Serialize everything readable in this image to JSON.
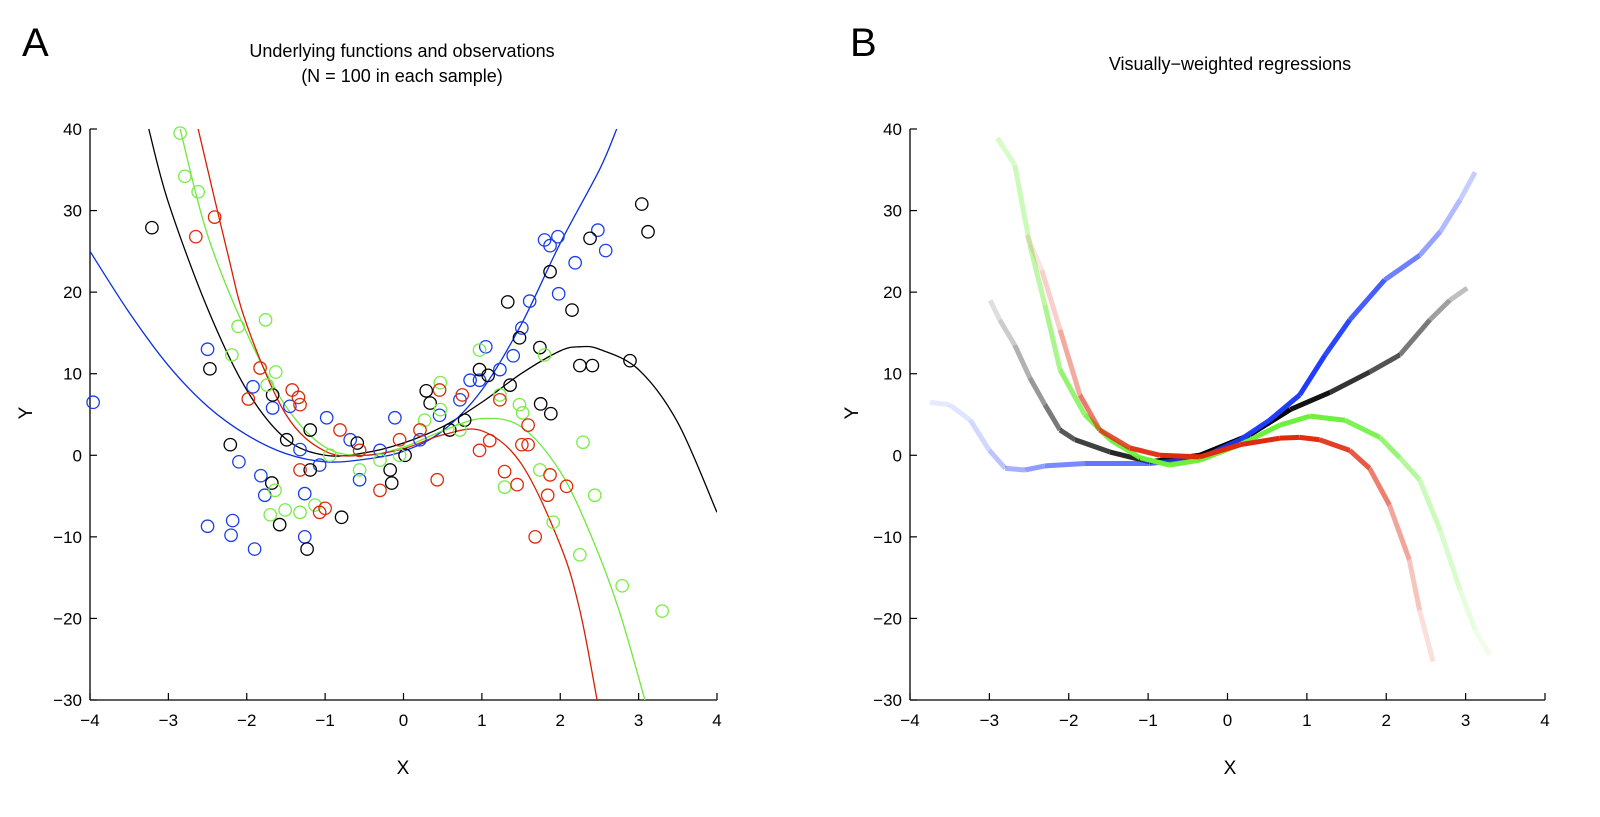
{
  "chart_data": [
    {
      "type": "scatter",
      "panel_label": "A",
      "title": [
        "Underlying functions and observations",
        "(N = 100 in each sample)"
      ],
      "xlabel": "X",
      "ylabel": "Y",
      "xlim": [
        -4,
        4
      ],
      "ylim": [
        -30,
        40
      ],
      "xticks": [
        "−4",
        "−3",
        "−2",
        "−1",
        "0",
        "1",
        "2",
        "3",
        "4"
      ],
      "yticks": [
        "−30",
        "−20",
        "−10",
        "0",
        "10",
        "20",
        "30",
        "40"
      ],
      "grid": false,
      "curves": [
        {
          "color": "#000000",
          "x": [
            -3.25,
            -3,
            -2.5,
            -2,
            -1.5,
            -1,
            -0.5,
            0,
            0.5,
            1,
            1.5,
            2,
            2.25,
            2.5,
            3,
            3.5,
            4
          ],
          "y": [
            40,
            31,
            18,
            8,
            2,
            0,
            0.3,
            1.5,
            3.5,
            6.5,
            10,
            12.8,
            13.3,
            13,
            10.5,
            4,
            -7
          ]
        },
        {
          "color": "#0a2fe0",
          "x": [
            -4,
            -3.5,
            -3,
            -2.5,
            -2,
            -1.5,
            -1,
            -0.5,
            0,
            0.5,
            1,
            1.5,
            2,
            2.5,
            2.72
          ],
          "y": [
            25,
            17.5,
            11,
            6,
            2.5,
            0.2,
            -0.8,
            -0.5,
            0.5,
            3,
            8,
            16,
            26,
            35,
            40
          ]
        },
        {
          "color": "#6ee83c",
          "x": [
            -2.85,
            -2.5,
            -2,
            -1.5,
            -1,
            -0.5,
            0,
            0.5,
            1,
            1.5,
            2,
            2.4,
            2.75,
            3.08
          ],
          "y": [
            40,
            27,
            15,
            6,
            1,
            0,
            1,
            3,
            4.5,
            3.5,
            -2,
            -10,
            -19,
            -30
          ]
        },
        {
          "color": "#d81e00",
          "x": [
            -2.62,
            -2.25,
            -2,
            -1.5,
            -1,
            -0.5,
            0,
            0.5,
            1,
            1.5,
            2,
            2.25,
            2.47
          ],
          "y": [
            40,
            25,
            16,
            5,
            0.5,
            0,
            0.8,
            2.5,
            3,
            -1,
            -11,
            -19,
            -30
          ]
        }
      ],
      "series": [
        {
          "color": "#1a3fe8",
          "x": [
            -3.96,
            -2.5,
            -2.5,
            -2.18,
            -2.2,
            -1.9,
            -1.92,
            -0.98,
            -1.82,
            -1.77,
            -2.1,
            -1.26,
            -1.26,
            -1.67,
            -1.45,
            1.8,
            1.87,
            1.97,
            2.19,
            2.48,
            2.58,
            1.98,
            1.61,
            1.51,
            1.4,
            1.05,
            0.85,
            -0.11,
            -0.68,
            -0.3,
            0.21,
            0.46,
            0.72,
            0.97,
            1.23,
            -0.56,
            -1.32,
            -1.07
          ],
          "y": [
            6.5,
            13,
            -8.7,
            -8,
            -9.8,
            -11.5,
            8.4,
            4.6,
            -2.5,
            -4.9,
            -0.8,
            -4.7,
            -10,
            5.8,
            6,
            26.4,
            25.7,
            26.8,
            23.6,
            27.6,
            25.1,
            19.8,
            18.9,
            15.6,
            12.2,
            13.3,
            9.2,
            4.6,
            1.9,
            0.6,
            1.9,
            4.9,
            6.8,
            9.2,
            10.5,
            -3,
            0.7,
            -1.2
          ]
        },
        {
          "color": "#000000",
          "x": [
            -3.21,
            -2.47,
            -2.21,
            -1.68,
            -1.58,
            -1.23,
            -0.79,
            -1.67,
            -1.49,
            -1.19,
            -1.19,
            -0.15,
            -0.17,
            -0.59,
            0.29,
            0.34,
            0.78,
            0.97,
            1.08,
            1.33,
            1.48,
            1.74,
            1.87,
            1.88,
            1.75,
            2.15,
            2.38,
            3.04,
            3.12,
            2.25,
            2.41,
            2.89,
            1.36,
            0.59,
            0.02
          ],
          "y": [
            27.9,
            10.6,
            1.3,
            -3.4,
            -8.5,
            -11.5,
            -7.6,
            7.4,
            1.9,
            3.1,
            -1.8,
            -3.4,
            -1.8,
            1.5,
            7.9,
            6.4,
            4.3,
            10.5,
            9.8,
            18.8,
            14.4,
            13.2,
            22.5,
            5.1,
            6.3,
            17.8,
            26.6,
            30.8,
            27.4,
            11,
            11,
            11.6,
            8.6,
            3.1,
            0
          ]
        },
        {
          "color": "#78ec46",
          "x": [
            -2.85,
            -2.79,
            -2.62,
            -2.11,
            -1.76,
            -2.19,
            -1.63,
            -1.74,
            -1.51,
            -1.7,
            -1.32,
            -1.13,
            -1.64,
            -0.56,
            -0.3,
            -0.05,
            0.27,
            0.47,
            0.97,
            1.8,
            1.23,
            1.48,
            1.52,
            1.29,
            1.74,
            1.91,
            2.25,
            2.29,
            2.44,
            2.79,
            3.3,
            0.72,
            -0.94,
            0.47
          ],
          "y": [
            39.5,
            34.2,
            32.3,
            15.8,
            16.6,
            12.3,
            10.2,
            8.6,
            -6.7,
            -7.3,
            -7,
            -6.1,
            -4.3,
            -1.8,
            -0.6,
            0,
            4.3,
            5.6,
            12.9,
            12.3,
            7.4,
            6.2,
            5.2,
            -3.9,
            -1.8,
            -8.2,
            -12.2,
            1.6,
            -4.9,
            -16,
            -19.1,
            3.1,
            0,
            8.9
          ]
        },
        {
          "color": "#dc2a0a",
          "x": [
            -2.41,
            -2.65,
            -1.98,
            -1.83,
            -1.42,
            -1.34,
            -1.32,
            -1.07,
            -1.0,
            -0.56,
            -0.3,
            0.21,
            0.43,
            0.46,
            0.75,
            0.97,
            1.1,
            1.29,
            1.45,
            1.51,
            1.59,
            1.59,
            1.68,
            1.84,
            1.87,
            2.08,
            1.23,
            -0.81,
            -1.32,
            -0.05
          ],
          "y": [
            29.2,
            26.8,
            6.9,
            10.7,
            8,
            7.1,
            6.2,
            -7,
            -6.5,
            0.6,
            -4.3,
            3.1,
            -3,
            8,
            7.4,
            0.6,
            1.8,
            -2,
            -3.6,
            1.3,
            1.3,
            3.7,
            -10,
            -4.9,
            -2.4,
            -3.8,
            6.8,
            3.1,
            -1.8,
            1.9
          ]
        }
      ]
    },
    {
      "type": "line",
      "panel_label": "B",
      "title": [
        "Visually−weighted regressions"
      ],
      "xlabel": "X",
      "ylabel": "Y",
      "xlim": [
        -4,
        4
      ],
      "ylim": [
        -30,
        40
      ],
      "xticks": [
        "−4",
        "−3",
        "−2",
        "−1",
        "0",
        "1",
        "2",
        "3",
        "4"
      ],
      "yticks": [
        "−30",
        "−20",
        "−10",
        "0",
        "10",
        "20",
        "30",
        "40"
      ],
      "grid": false,
      "series": [
        {
          "color": "#000000",
          "x": [
            -2.99,
            -2.87,
            -2.68,
            -2.49,
            -2.3,
            -2.11,
            -1.92,
            -1.48,
            -0.98,
            -0.35,
            0.28,
            0.79,
            1.29,
            1.79,
            2.17,
            2.55,
            2.8,
            3.02
          ],
          "y": [
            19,
            16.6,
            13.5,
            9.5,
            6.2,
            3.1,
            1.9,
            0.4,
            -0.8,
            0,
            2.5,
            5.6,
            7.7,
            10.2,
            12.3,
            16.6,
            19,
            20.5
          ],
          "weight": [
            0.1,
            0.15,
            0.25,
            0.35,
            0.45,
            0.6,
            0.7,
            0.8,
            0.9,
            1,
            1,
            1,
            0.85,
            0.75,
            0.6,
            0.45,
            0.3,
            0.2
          ]
        },
        {
          "color": "#1f3cff",
          "x": [
            -3.75,
            -3.5,
            -3.24,
            -3.0,
            -2.8,
            -2.55,
            -2.3,
            -1.8,
            -0.98,
            -0.35,
            0.16,
            0.53,
            0.91,
            1.23,
            1.54,
            1.98,
            2.42,
            2.68,
            2.93,
            3.12
          ],
          "y": [
            6.5,
            6.2,
            4.3,
            0.6,
            -1.6,
            -1.8,
            -1.3,
            -1,
            -1,
            -0.4,
            1.9,
            4.3,
            7.4,
            12.3,
            16.6,
            21.5,
            24.5,
            27.4,
            31.3,
            34.7
          ],
          "weight": [
            0.1,
            0.12,
            0.15,
            0.25,
            0.35,
            0.45,
            0.55,
            0.65,
            0.75,
            0.85,
            0.95,
            1,
            1,
            1,
            0.9,
            0.75,
            0.55,
            0.4,
            0.3,
            0.2
          ]
        },
        {
          "color": "#6cf03a",
          "x": [
            -2.9,
            -2.68,
            -2.49,
            -2.3,
            -2.11,
            -1.8,
            -1.48,
            -1.1,
            -0.73,
            -0.35,
            0.16,
            0.66,
            1.04,
            1.48,
            1.92,
            2.17,
            2.42,
            2.68,
            2.93,
            3.12,
            3.3
          ],
          "y": [
            38.9,
            35.6,
            25.8,
            18.4,
            10.5,
            5,
            1.9,
            -0.3,
            -1.2,
            -0.6,
            1.3,
            3.7,
            4.8,
            4.3,
            2.2,
            -0.3,
            -3,
            -9.2,
            -16.5,
            -21.4,
            -24.5
          ],
          "weight": [
            0.25,
            0.3,
            0.4,
            0.5,
            0.65,
            0.8,
            0.9,
            1,
            1,
            1,
            1,
            1,
            1,
            0.95,
            0.8,
            0.6,
            0.4,
            0.3,
            0.2,
            0.12,
            0.08
          ]
        },
        {
          "color": "#e02a10",
          "x": [
            -2.53,
            -2.34,
            -2.11,
            -1.86,
            -1.61,
            -1.23,
            -0.85,
            -0.35,
            0.16,
            0.66,
            0.91,
            1.16,
            1.54,
            1.79,
            2.04,
            2.29,
            2.42,
            2.59
          ],
          "y": [
            27,
            22.7,
            15.4,
            7.4,
            3.1,
            0.9,
            0,
            -0.2,
            1.3,
            2.1,
            2.2,
            1.9,
            0.6,
            -1.6,
            -6.1,
            -12.8,
            -19,
            -25.3
          ],
          "weight": [
            0.1,
            0.15,
            0.3,
            0.5,
            0.75,
            0.9,
            1,
            1,
            1,
            1,
            1,
            0.95,
            0.85,
            0.7,
            0.5,
            0.35,
            0.2,
            0.1
          ]
        }
      ]
    }
  ]
}
